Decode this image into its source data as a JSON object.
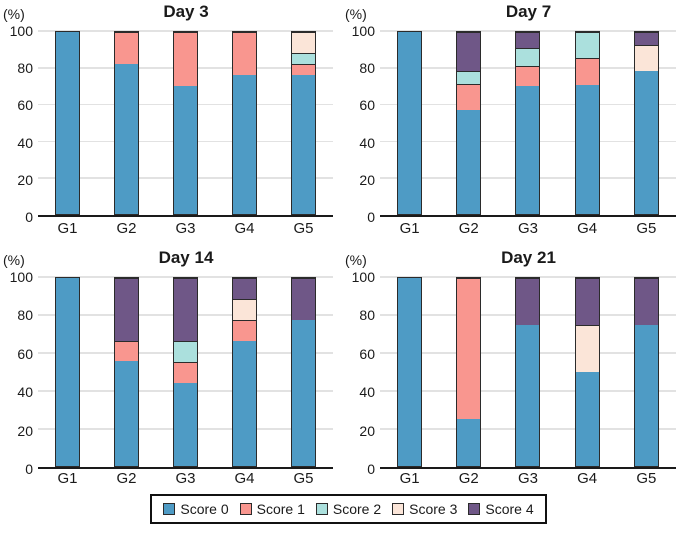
{
  "colors": {
    "score0": "#4E9BC5",
    "score1": "#F9968F",
    "score2": "#ABE0DD",
    "score3": "#FBE5D8",
    "score4": "#6F5787",
    "bar_outline": "#2B2B2B",
    "gridline": "#E2E2E2",
    "axis": "#1A1A1A"
  },
  "legend": {
    "items": [
      {
        "label": "Score 0",
        "color": "#4E9BC5"
      },
      {
        "label": "Score 1",
        "color": "#F9968F"
      },
      {
        "label": "Score 2",
        "color": "#ABE0DD"
      },
      {
        "label": "Score 3",
        "color": "#FBE5D8"
      },
      {
        "label": "Score 4",
        "color": "#6F5787"
      }
    ]
  },
  "chart_data": [
    {
      "type": "bar",
      "stacked": true,
      "title": "Day 3",
      "ylabel": "(%)",
      "ylim": [
        0,
        100
      ],
      "yticks": [
        0,
        20,
        40,
        60,
        80,
        100
      ],
      "grid": true,
      "categories": [
        "G1",
        "G2",
        "G3",
        "G4",
        "G5"
      ],
      "series": [
        {
          "name": "Score 0",
          "values": [
            100,
            82.4,
            70.6,
            76.5,
            76.5
          ]
        },
        {
          "name": "Score 1",
          "values": [
            0,
            17.6,
            29.4,
            23.5,
            5.9
          ]
        },
        {
          "name": "Score 2",
          "values": [
            0,
            0,
            0,
            0,
            5.9
          ]
        },
        {
          "name": "Score 3",
          "values": [
            0,
            0,
            0,
            0,
            11.7
          ]
        },
        {
          "name": "Score 4",
          "values": [
            0,
            0,
            0,
            0,
            0
          ]
        }
      ]
    },
    {
      "type": "bar",
      "stacked": true,
      "title": "Day 7",
      "ylabel": "(%)",
      "ylim": [
        0,
        100
      ],
      "yticks": [
        0,
        20,
        40,
        60,
        80,
        100
      ],
      "grid": true,
      "categories": [
        "G1",
        "G2",
        "G3",
        "G4",
        "G5"
      ],
      "series": [
        {
          "name": "Score 0",
          "values": [
            100,
            57.1,
            70.5,
            71,
            78.5
          ]
        },
        {
          "name": "Score 1",
          "values": [
            0,
            14.3,
            11,
            14.5,
            0
          ]
        },
        {
          "name": "Score 2",
          "values": [
            0,
            7.2,
            10,
            14.5,
            0
          ]
        },
        {
          "name": "Score 3",
          "values": [
            0,
            0,
            0,
            0,
            14.5
          ]
        },
        {
          "name": "Score 4",
          "values": [
            0,
            21.4,
            8.5,
            0,
            7
          ]
        }
      ]
    },
    {
      "type": "bar",
      "stacked": true,
      "title": "Day 14",
      "ylabel": "(%)",
      "ylim": [
        0,
        100
      ],
      "yticks": [
        0,
        20,
        40,
        60,
        80,
        100
      ],
      "grid": true,
      "categories": [
        "G1",
        "G2",
        "G3",
        "G4",
        "G5"
      ],
      "series": [
        {
          "name": "Score 0",
          "values": [
            100,
            55.6,
            44.4,
            66.7,
            77.8
          ]
        },
        {
          "name": "Score 1",
          "values": [
            0,
            11.1,
            11.1,
            11.1,
            0
          ]
        },
        {
          "name": "Score 2",
          "values": [
            0,
            0,
            11.1,
            0,
            0
          ]
        },
        {
          "name": "Score 3",
          "values": [
            0,
            0,
            0,
            11.1,
            0
          ]
        },
        {
          "name": "Score 4",
          "values": [
            0,
            33.3,
            33.4,
            11.1,
            22.2
          ]
        }
      ]
    },
    {
      "type": "bar",
      "stacked": true,
      "title": "Day 21",
      "ylabel": "(%)",
      "ylim": [
        0,
        100
      ],
      "yticks": [
        0,
        20,
        40,
        60,
        80,
        100
      ],
      "grid": true,
      "categories": [
        "G1",
        "G2",
        "G3",
        "G4",
        "G5"
      ],
      "series": [
        {
          "name": "Score 0",
          "values": [
            100,
            25,
            75,
            50,
            75
          ]
        },
        {
          "name": "Score 1",
          "values": [
            0,
            75,
            0,
            0,
            0
          ]
        },
        {
          "name": "Score 2",
          "values": [
            0,
            0,
            0,
            0,
            0
          ]
        },
        {
          "name": "Score 3",
          "values": [
            0,
            0,
            0,
            25,
            0
          ]
        },
        {
          "name": "Score 4",
          "values": [
            0,
            0,
            25,
            25,
            25
          ]
        }
      ]
    }
  ]
}
